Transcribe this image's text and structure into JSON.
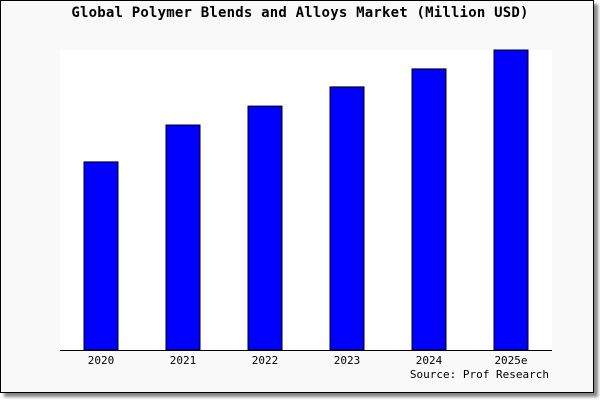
{
  "chart_data": {
    "type": "bar",
    "title": "Global Polymer Blends and Alloys Market (Million USD)",
    "categories": [
      "2020",
      "2021",
      "2022",
      "2023",
      "2024",
      "2025e"
    ],
    "values": [
      62.7,
      75.0,
      81.3,
      87.7,
      93.7,
      100.0
    ],
    "ylim": [
      0,
      100
    ],
    "xlabel": "",
    "ylabel": "",
    "grid": false,
    "bar_color": "#0000ff",
    "annotation": "Source: Prof Research"
  }
}
